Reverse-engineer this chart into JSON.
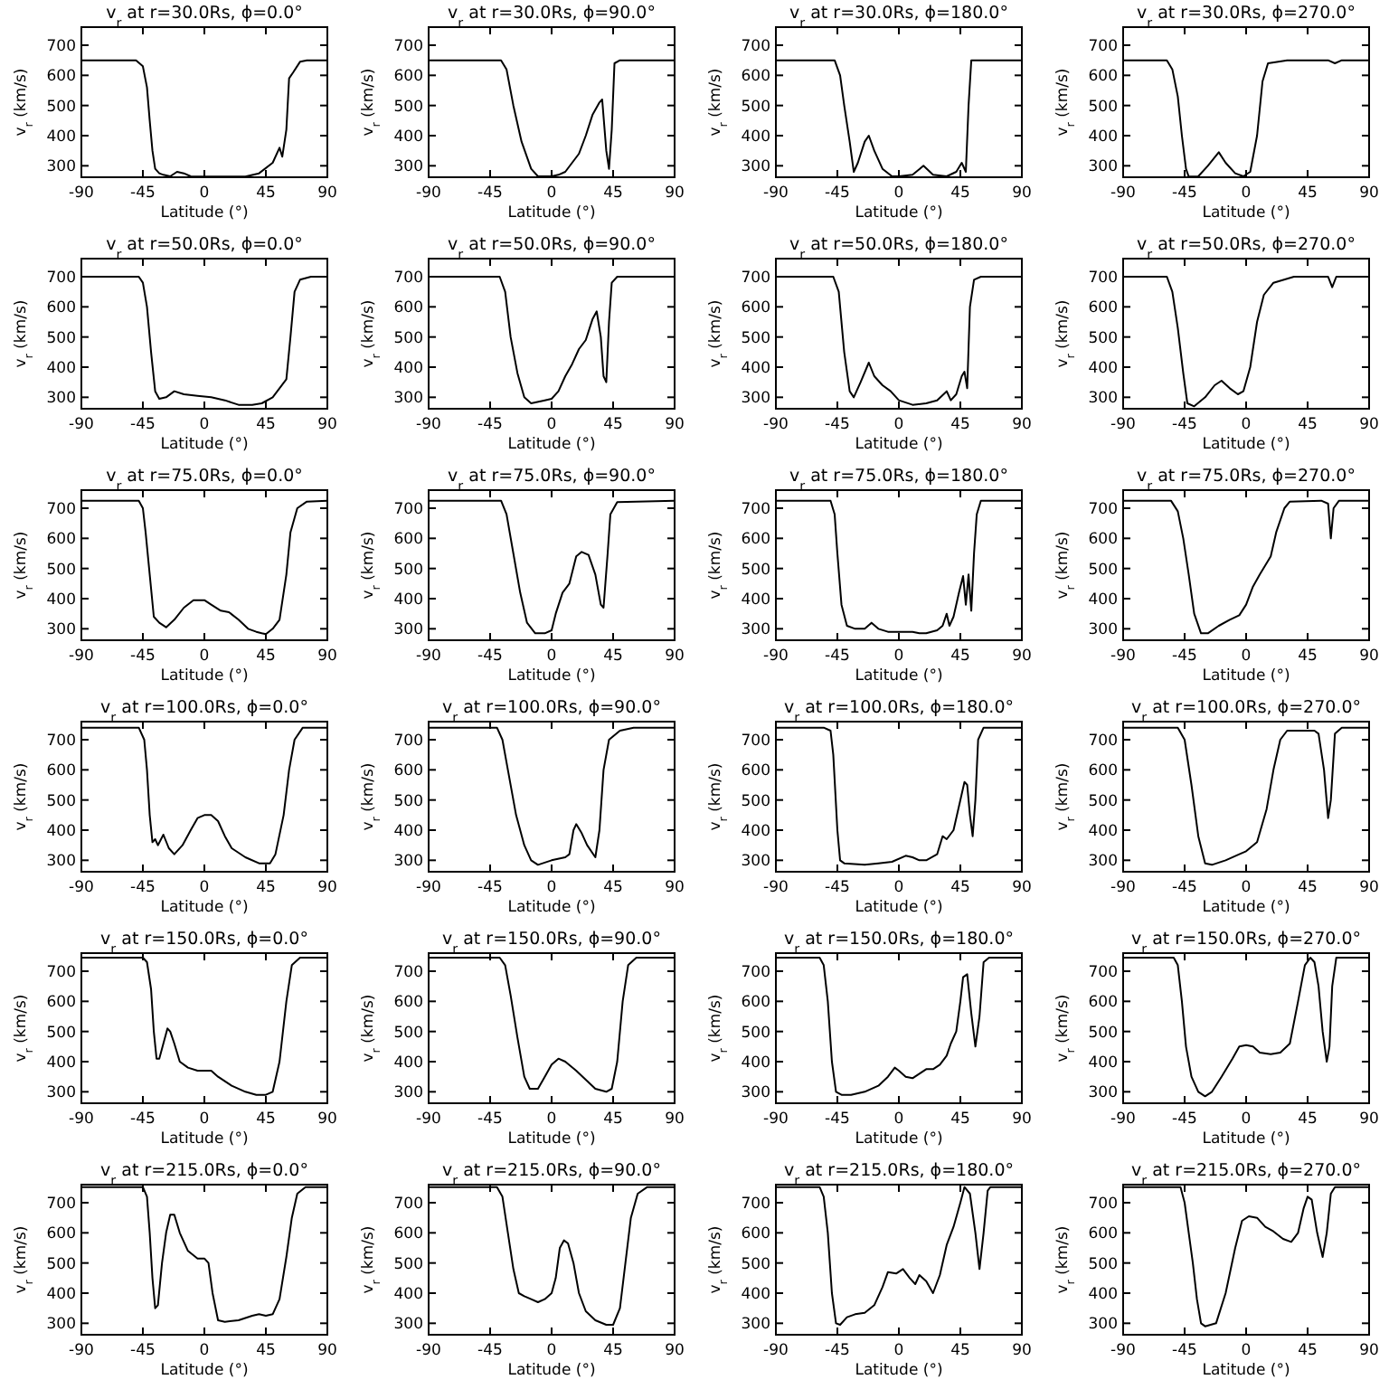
{
  "chart_data": [
    {
      "type": "line",
      "title": "v$_{r}$ at r=30.0Rs,  ϕ=0.0°",
      "xlabel": "Latitude (°)",
      "ylabel": "v$_{r}$ (km/s)",
      "xlim": [
        -90,
        90
      ],
      "ylim": [
        262,
        760
      ],
      "xticks": [
        -90,
        -45,
        0,
        45,
        90
      ],
      "yticks": [
        300,
        400,
        500,
        600,
        700
      ],
      "color": "#000000",
      "x": [
        -90,
        -50,
        -45,
        -42,
        -40,
        -38,
        -36,
        -33,
        -30,
        -25,
        -20,
        -15,
        -10,
        0,
        20,
        30,
        40,
        50,
        55,
        57,
        60,
        62,
        65,
        70,
        75,
        90
      ],
      "values": [
        650,
        650,
        630,
        560,
        450,
        350,
        290,
        275,
        270,
        265,
        280,
        275,
        265,
        264,
        264,
        264,
        275,
        310,
        360,
        330,
        420,
        590,
        610,
        645,
        650,
        650
      ]
    },
    {
      "type": "line",
      "title": "v$_{r}$ at r=30.0Rs,  ϕ=90.0°",
      "xlabel": "Latitude (°)",
      "ylabel": "v$_{r}$ (km/s)",
      "xlim": [
        -90,
        90
      ],
      "ylim": [
        262,
        760
      ],
      "xticks": [
        -90,
        -45,
        0,
        45,
        90
      ],
      "yticks": [
        300,
        400,
        500,
        600,
        700
      ],
      "color": "#000000",
      "x": [
        -90,
        -37,
        -33,
        -28,
        -22,
        -15,
        -10,
        0,
        5,
        10,
        15,
        20,
        25,
        30,
        35,
        37,
        40,
        42,
        44,
        46,
        50,
        90
      ],
      "values": [
        650,
        650,
        620,
        500,
        380,
        290,
        265,
        265,
        270,
        280,
        310,
        340,
        400,
        470,
        510,
        520,
        350,
        290,
        420,
        640,
        650,
        650
      ]
    },
    {
      "type": "line",
      "title": "v$_{r}$ at r=30.0Rs,  ϕ=180.0°",
      "xlabel": "Latitude (°)",
      "ylabel": "v$_{r}$ (km/s)",
      "xlim": [
        -90,
        90
      ],
      "ylim": [
        262,
        760
      ],
      "xticks": [
        -90,
        -45,
        0,
        45,
        90
      ],
      "yticks": [
        300,
        400,
        500,
        600,
        700
      ],
      "color": "#000000",
      "x": [
        -90,
        -47,
        -43,
        -40,
        -36,
        -33,
        -30,
        -25,
        -22,
        -18,
        -12,
        -5,
        0,
        10,
        18,
        25,
        35,
        42,
        46,
        49,
        51,
        53,
        90
      ],
      "values": [
        650,
        650,
        600,
        500,
        380,
        280,
        310,
        380,
        400,
        350,
        290,
        265,
        265,
        270,
        300,
        270,
        265,
        280,
        310,
        280,
        500,
        650,
        650
      ]
    },
    {
      "type": "line",
      "title": "v$_{r}$ at r=30.0Rs,  ϕ=270.0°",
      "xlabel": "Latitude (°)",
      "ylabel": "v$_{r}$ (km/s)",
      "xlim": [
        -90,
        90
      ],
      "ylim": [
        262,
        760
      ],
      "xticks": [
        -90,
        -45,
        0,
        45,
        90
      ],
      "yticks": [
        300,
        400,
        500,
        600,
        700
      ],
      "color": "#000000",
      "x": [
        -90,
        -58,
        -54,
        -50,
        -47,
        -44,
        -42,
        -35,
        -28,
        -20,
        -15,
        -8,
        -2,
        3,
        8,
        12,
        16,
        30,
        60,
        65,
        70,
        90
      ],
      "values": [
        650,
        650,
        620,
        530,
        400,
        290,
        264,
        265,
        300,
        345,
        310,
        275,
        265,
        280,
        400,
        580,
        640,
        650,
        650,
        640,
        650,
        650
      ]
    },
    {
      "type": "line",
      "title": "v$_{r}$ at r=50.0Rs,  ϕ=0.0°",
      "xlabel": "Latitude (°)",
      "ylabel": "v$_{r}$ (km/s)",
      "xlim": [
        -90,
        90
      ],
      "ylim": [
        262,
        760
      ],
      "xticks": [
        -90,
        -45,
        0,
        45,
        90
      ],
      "yticks": [
        300,
        400,
        500,
        600,
        700
      ],
      "color": "#000000",
      "x": [
        -90,
        -48,
        -45,
        -42,
        -39,
        -36,
        -33,
        -28,
        -22,
        -15,
        -5,
        5,
        15,
        25,
        35,
        42,
        50,
        55,
        60,
        63,
        66,
        70,
        78,
        90
      ],
      "values": [
        700,
        700,
        680,
        600,
        450,
        320,
        295,
        300,
        320,
        310,
        305,
        300,
        290,
        275,
        275,
        280,
        300,
        330,
        360,
        500,
        650,
        690,
        700,
        700
      ]
    },
    {
      "type": "line",
      "title": "v$_{r}$ at r=50.0Rs,  ϕ=90.0°",
      "xlabel": "Latitude (°)",
      "ylabel": "v$_{r}$ (km/s)",
      "xlim": [
        -90,
        90
      ],
      "ylim": [
        262,
        760
      ],
      "xticks": [
        -90,
        -45,
        0,
        45,
        90
      ],
      "yticks": [
        300,
        400,
        500,
        600,
        700
      ],
      "color": "#000000",
      "x": [
        -90,
        -38,
        -34,
        -30,
        -25,
        -20,
        -15,
        -5,
        0,
        5,
        10,
        15,
        20,
        25,
        30,
        33,
        36,
        38,
        40,
        42,
        44,
        48,
        90
      ],
      "values": [
        700,
        700,
        650,
        500,
        380,
        300,
        280,
        290,
        295,
        320,
        370,
        410,
        460,
        490,
        560,
        585,
        500,
        370,
        350,
        550,
        680,
        700,
        700
      ]
    },
    {
      "type": "line",
      "title": "v$_{r}$ at r=50.0Rs,  ϕ=180.0°",
      "xlabel": "Latitude (°)",
      "ylabel": "v$_{r}$ (km/s)",
      "xlim": [
        -90,
        90
      ],
      "ylim": [
        262,
        760
      ],
      "xticks": [
        -90,
        -45,
        0,
        45,
        90
      ],
      "yticks": [
        300,
        400,
        500,
        600,
        700
      ],
      "color": "#000000",
      "x": [
        -90,
        -48,
        -44,
        -40,
        -36,
        -33,
        -28,
        -22,
        -18,
        -12,
        -6,
        0,
        10,
        20,
        28,
        35,
        38,
        42,
        46,
        48,
        50,
        52,
        55,
        60,
        90
      ],
      "values": [
        700,
        700,
        650,
        450,
        320,
        300,
        350,
        415,
        370,
        340,
        320,
        290,
        275,
        280,
        290,
        320,
        290,
        310,
        370,
        385,
        330,
        600,
        690,
        700,
        700
      ]
    },
    {
      "type": "line",
      "title": "v$_{r}$ at r=50.0Rs,  ϕ=270.0°",
      "xlabel": "Latitude (°)",
      "ylabel": "v$_{r}$ (km/s)",
      "xlim": [
        -90,
        90
      ],
      "ylim": [
        262,
        760
      ],
      "xticks": [
        -90,
        -45,
        0,
        45,
        90
      ],
      "yticks": [
        300,
        400,
        500,
        600,
        700
      ],
      "color": "#000000",
      "x": [
        -90,
        -58,
        -54,
        -50,
        -46,
        -43,
        -38,
        -30,
        -23,
        -18,
        -12,
        -6,
        -2,
        3,
        8,
        13,
        20,
        35,
        60,
        63,
        66,
        90
      ],
      "values": [
        700,
        700,
        650,
        530,
        380,
        280,
        270,
        300,
        340,
        355,
        330,
        310,
        320,
        400,
        550,
        640,
        680,
        700,
        700,
        665,
        700,
        700
      ]
    },
    {
      "type": "line",
      "title": "v$_{r}$ at r=75.0Rs,  ϕ=0.0°",
      "xlabel": "Latitude (°)",
      "ylabel": "v$_{r}$ (km/s)",
      "xlim": [
        -90,
        90
      ],
      "ylim": [
        262,
        760
      ],
      "xticks": [
        -90,
        -45,
        0,
        45,
        90
      ],
      "yticks": [
        300,
        400,
        500,
        600,
        700
      ],
      "color": "#000000",
      "x": [
        -90,
        -48,
        -45,
        -43,
        -40,
        -37,
        -33,
        -28,
        -22,
        -15,
        -8,
        0,
        5,
        12,
        18,
        25,
        32,
        38,
        42,
        45,
        50,
        55,
        60,
        63,
        68,
        75,
        90
      ],
      "values": [
        725,
        725,
        700,
        620,
        480,
        340,
        320,
        305,
        330,
        370,
        395,
        395,
        380,
        360,
        355,
        330,
        300,
        290,
        285,
        282,
        300,
        330,
        480,
        620,
        700,
        722,
        725
      ]
    },
    {
      "type": "line",
      "title": "v$_{r}$ at r=75.0Rs,  ϕ=90.0°",
      "xlabel": "Latitude (°)",
      "ylabel": "v$_{r}$ (km/s)",
      "xlim": [
        -90,
        90
      ],
      "ylim": [
        262,
        760
      ],
      "xticks": [
        -90,
        -45,
        0,
        45,
        90
      ],
      "yticks": [
        300,
        400,
        500,
        600,
        700
      ],
      "color": "#000000",
      "x": [
        -90,
        -37,
        -33,
        -28,
        -23,
        -18,
        -12,
        -5,
        0,
        3,
        8,
        13,
        18,
        22,
        27,
        32,
        36,
        38,
        41,
        43,
        48,
        90
      ],
      "values": [
        725,
        725,
        680,
        550,
        420,
        320,
        285,
        285,
        295,
        350,
        420,
        450,
        540,
        555,
        545,
        480,
        380,
        370,
        550,
        680,
        720,
        725
      ]
    },
    {
      "type": "line",
      "title": "v$_{r}$ at r=75.0Rs,  ϕ=180.0°",
      "xlabel": "Latitude (°)",
      "ylabel": "v$_{r}$ (km/s)",
      "xlim": [
        -90,
        90
      ],
      "ylim": [
        262,
        760
      ],
      "xticks": [
        -90,
        -45,
        0,
        45,
        90
      ],
      "yticks": [
        300,
        400,
        500,
        600,
        700
      ],
      "color": "#000000",
      "x": [
        -90,
        -50,
        -47,
        -45,
        -42,
        -38,
        -32,
        -25,
        -20,
        -15,
        -8,
        0,
        10,
        15,
        20,
        28,
        32,
        35,
        37,
        40,
        44,
        47,
        49,
        51,
        53,
        55,
        57,
        60,
        90
      ],
      "values": [
        725,
        725,
        680,
        550,
        380,
        310,
        300,
        300,
        320,
        300,
        290,
        290,
        290,
        285,
        285,
        295,
        310,
        350,
        310,
        340,
        420,
        475,
        380,
        480,
        360,
        550,
        680,
        725,
        725
      ]
    },
    {
      "type": "line",
      "title": "v$_{r}$ at r=75.0Rs,  ϕ=270.0°",
      "xlabel": "Latitude (°)",
      "ylabel": "v$_{r}$ (km/s)",
      "xlim": [
        -90,
        90
      ],
      "ylim": [
        262,
        760
      ],
      "xticks": [
        -90,
        -45,
        0,
        45,
        90
      ],
      "yticks": [
        300,
        400,
        500,
        600,
        700
      ],
      "color": "#000000",
      "x": [
        -90,
        -55,
        -50,
        -46,
        -42,
        -38,
        -33,
        -28,
        -20,
        -12,
        -5,
        0,
        5,
        10,
        18,
        22,
        28,
        32,
        55,
        60,
        62,
        64,
        68,
        90
      ],
      "values": [
        725,
        725,
        690,
        600,
        480,
        350,
        285,
        285,
        310,
        330,
        345,
        380,
        440,
        480,
        540,
        620,
        700,
        722,
        725,
        715,
        600,
        700,
        725,
        725
      ]
    },
    {
      "type": "line",
      "title": "v$_{r}$ at r=100.0Rs,  ϕ=0.0°",
      "xlabel": "Latitude (°)",
      "ylabel": "v$_{r}$ (km/s)",
      "xlim": [
        -90,
        90
      ],
      "ylim": [
        262,
        760
      ],
      "xticks": [
        -90,
        -45,
        0,
        45,
        90
      ],
      "yticks": [
        300,
        400,
        500,
        600,
        700
      ],
      "color": "#000000",
      "x": [
        -90,
        -48,
        -44,
        -42,
        -40,
        -38,
        -36,
        -34,
        -30,
        -26,
        -22,
        -16,
        -10,
        -5,
        0,
        5,
        10,
        15,
        20,
        30,
        40,
        48,
        52,
        58,
        62,
        66,
        72,
        90
      ],
      "values": [
        740,
        740,
        700,
        600,
        450,
        360,
        370,
        350,
        385,
        340,
        320,
        350,
        400,
        440,
        450,
        450,
        430,
        380,
        340,
        310,
        290,
        290,
        320,
        450,
        600,
        700,
        740,
        740
      ]
    },
    {
      "type": "line",
      "title": "v$_{r}$ at r=100.0Rs,  ϕ=90.0°",
      "xlabel": "Latitude (°)",
      "ylabel": "v$_{r}$ (km/s)",
      "xlim": [
        -90,
        90
      ],
      "ylim": [
        262,
        760
      ],
      "xticks": [
        -90,
        -45,
        0,
        45,
        90
      ],
      "yticks": [
        300,
        400,
        500,
        600,
        700
      ],
      "color": "#000000",
      "x": [
        -90,
        -40,
        -36,
        -32,
        -26,
        -20,
        -15,
        -10,
        0,
        10,
        13,
        16,
        18,
        22,
        26,
        32,
        35,
        38,
        42,
        50,
        60,
        90
      ],
      "values": [
        740,
        740,
        700,
        600,
        450,
        350,
        300,
        285,
        300,
        310,
        320,
        400,
        420,
        390,
        350,
        310,
        400,
        600,
        700,
        730,
        740,
        740
      ]
    },
    {
      "type": "line",
      "title": "v$_{r}$ at r=100.0Rs,  ϕ=180.0°",
      "xlabel": "Latitude (°)",
      "ylabel": "v$_{r}$ (km/s)",
      "xlim": [
        -90,
        90
      ],
      "ylim": [
        262,
        760
      ],
      "xticks": [
        -90,
        -45,
        0,
        45,
        90
      ],
      "yticks": [
        300,
        400,
        500,
        600,
        700
      ],
      "color": "#000000",
      "x": [
        -90,
        -55,
        -50,
        -48,
        -45,
        -43,
        -40,
        -25,
        -15,
        -5,
        5,
        10,
        15,
        20,
        28,
        32,
        35,
        40,
        45,
        48,
        50,
        52,
        54,
        56,
        58,
        62,
        90
      ],
      "values": [
        740,
        740,
        730,
        650,
        400,
        300,
        290,
        285,
        290,
        295,
        315,
        310,
        300,
        300,
        320,
        380,
        370,
        400,
        500,
        560,
        550,
        450,
        380,
        500,
        700,
        740,
        740
      ]
    },
    {
      "type": "line",
      "title": "v$_{r}$ at r=100.0Rs,  ϕ=270.0°",
      "xlabel": "Latitude (°)",
      "ylabel": "v$_{r}$ (km/s)",
      "xlim": [
        -90,
        90
      ],
      "ylim": [
        262,
        760
      ],
      "xticks": [
        -90,
        -45,
        0,
        45,
        90
      ],
      "yticks": [
        300,
        400,
        500,
        600,
        700
      ],
      "color": "#000000",
      "x": [
        -90,
        -50,
        -45,
        -40,
        -35,
        -30,
        -25,
        -15,
        -5,
        0,
        8,
        15,
        20,
        25,
        30,
        50,
        53,
        57,
        60,
        62,
        65,
        70,
        90
      ],
      "values": [
        740,
        740,
        700,
        550,
        380,
        290,
        285,
        300,
        320,
        330,
        360,
        470,
        600,
        700,
        730,
        730,
        720,
        600,
        440,
        500,
        720,
        740,
        740
      ]
    },
    {
      "type": "line",
      "title": "v$_{r}$ at r=150.0Rs,  ϕ=0.0°",
      "xlabel": "Latitude (°)",
      "ylabel": "v$_{r}$ (km/s)",
      "xlim": [
        -90,
        90
      ],
      "ylim": [
        262,
        760
      ],
      "xticks": [
        -90,
        -45,
        0,
        45,
        90
      ],
      "yticks": [
        300,
        400,
        500,
        600,
        700
      ],
      "color": "#000000",
      "x": [
        -90,
        -45,
        -42,
        -39,
        -37,
        -35,
        -33,
        -30,
        -27,
        -25,
        -22,
        -18,
        -12,
        -5,
        5,
        10,
        20,
        30,
        38,
        45,
        50,
        55,
        60,
        64,
        70,
        90
      ],
      "values": [
        745,
        745,
        730,
        640,
        500,
        410,
        410,
        460,
        510,
        500,
        460,
        400,
        380,
        370,
        370,
        350,
        320,
        300,
        290,
        290,
        300,
        400,
        600,
        720,
        745,
        745
      ]
    },
    {
      "type": "line",
      "title": "v$_{r}$ at r=150.0Rs,  ϕ=90.0°",
      "xlabel": "Latitude (°)",
      "ylabel": "v$_{r}$ (km/s)",
      "xlim": [
        -90,
        90
      ],
      "ylim": [
        262,
        760
      ],
      "xticks": [
        -90,
        -45,
        0,
        45,
        90
      ],
      "yticks": [
        300,
        400,
        500,
        600,
        700
      ],
      "color": "#000000",
      "x": [
        -90,
        -38,
        -34,
        -30,
        -25,
        -20,
        -16,
        -10,
        -5,
        0,
        5,
        10,
        18,
        25,
        32,
        40,
        44,
        48,
        52,
        56,
        62,
        90
      ],
      "values": [
        745,
        745,
        720,
        620,
        480,
        350,
        310,
        310,
        350,
        390,
        410,
        400,
        370,
        340,
        310,
        300,
        310,
        400,
        600,
        720,
        745,
        745
      ]
    },
    {
      "type": "line",
      "title": "v$_{r}$ at r=150.0Rs,  ϕ=180.0°",
      "xlabel": "Latitude (°)",
      "ylabel": "v$_{r}$ (km/s)",
      "xlim": [
        -90,
        90
      ],
      "ylim": [
        262,
        760
      ],
      "xticks": [
        -90,
        -45,
        0,
        45,
        90
      ],
      "yticks": [
        300,
        400,
        500,
        600,
        700
      ],
      "color": "#000000",
      "x": [
        -90,
        -58,
        -55,
        -52,
        -49,
        -46,
        -42,
        -35,
        -25,
        -15,
        -8,
        -3,
        0,
        5,
        10,
        15,
        20,
        25,
        30,
        35,
        38,
        42,
        45,
        47,
        50,
        53,
        56,
        59,
        62,
        66,
        90
      ],
      "values": [
        745,
        745,
        720,
        600,
        400,
        300,
        290,
        290,
        300,
        320,
        350,
        380,
        370,
        350,
        345,
        360,
        375,
        375,
        390,
        420,
        460,
        500,
        600,
        680,
        690,
        560,
        450,
        550,
        730,
        745,
        745
      ]
    },
    {
      "type": "line",
      "title": "v$_{r}$ at r=150.0Rs,  ϕ=270.0°",
      "xlabel": "Latitude (°)",
      "ylabel": "v$_{r}$ (km/s)",
      "xlim": [
        -90,
        90
      ],
      "ylim": [
        262,
        760
      ],
      "xticks": [
        -90,
        -45,
        0,
        45,
        90
      ],
      "yticks": [
        300,
        400,
        500,
        600,
        700
      ],
      "color": "#000000",
      "x": [
        -90,
        -53,
        -50,
        -47,
        -44,
        -40,
        -35,
        -30,
        -25,
        -18,
        -10,
        -5,
        0,
        5,
        10,
        18,
        25,
        32,
        38,
        43,
        47,
        50,
        53,
        56,
        59,
        61,
        63,
        66,
        90
      ],
      "values": [
        745,
        745,
        720,
        600,
        450,
        350,
        300,
        285,
        300,
        350,
        410,
        450,
        455,
        450,
        430,
        425,
        430,
        460,
        600,
        720,
        745,
        730,
        650,
        500,
        400,
        450,
        650,
        745,
        745
      ]
    },
    {
      "type": "line",
      "title": "v$_{r}$ at r=215.0Rs,  ϕ=0.0°",
      "xlabel": "Latitude (°)",
      "ylabel": "v$_{r}$ (km/s)",
      "xlim": [
        -90,
        90
      ],
      "ylim": [
        262,
        760
      ],
      "xticks": [
        -90,
        -45,
        0,
        45,
        90
      ],
      "yticks": [
        300,
        400,
        500,
        600,
        700
      ],
      "color": "#000000",
      "x": [
        -90,
        -45,
        -42,
        -40,
        -38,
        -36,
        -34,
        -31,
        -28,
        -25,
        -22,
        -18,
        -12,
        -5,
        0,
        3,
        6,
        10,
        15,
        25,
        35,
        40,
        45,
        50,
        55,
        60,
        64,
        68,
        74,
        90
      ],
      "values": [
        752,
        752,
        720,
        600,
        450,
        350,
        360,
        500,
        600,
        660,
        660,
        600,
        540,
        515,
        515,
        500,
        400,
        310,
        305,
        310,
        325,
        330,
        325,
        330,
        380,
        520,
        650,
        730,
        752,
        752
      ]
    },
    {
      "type": "line",
      "title": "v$_{r}$ at r=215.0Rs,  ϕ=90.0°",
      "xlabel": "Latitude (°)",
      "ylabel": "v$_{r}$ (km/s)",
      "xlim": [
        -90,
        90
      ],
      "ylim": [
        262,
        760
      ],
      "xticks": [
        -90,
        -45,
        0,
        45,
        90
      ],
      "yticks": [
        300,
        400,
        500,
        600,
        700
      ],
      "color": "#000000",
      "x": [
        -90,
        -40,
        -36,
        -32,
        -28,
        -24,
        -20,
        -15,
        -10,
        -5,
        0,
        3,
        6,
        9,
        12,
        16,
        20,
        25,
        32,
        40,
        45,
        50,
        54,
        58,
        63,
        70,
        90
      ],
      "values": [
        752,
        752,
        720,
        600,
        480,
        400,
        390,
        380,
        370,
        380,
        400,
        450,
        550,
        575,
        565,
        500,
        400,
        340,
        310,
        295,
        295,
        350,
        500,
        650,
        730,
        752,
        752
      ]
    },
    {
      "type": "line",
      "title": "v$_{r}$ at r=215.0Rs,  ϕ=180.0°",
      "xlabel": "Latitude (°)",
      "ylabel": "v$_{r}$ (km/s)",
      "xlim": [
        -90,
        90
      ],
      "ylim": [
        262,
        760
      ],
      "xticks": [
        -90,
        -45,
        0,
        45,
        90
      ],
      "yticks": [
        300,
        400,
        500,
        600,
        700
      ],
      "color": "#000000",
      "x": [
        -90,
        -58,
        -55,
        -52,
        -49,
        -46,
        -43,
        -38,
        -32,
        -25,
        -18,
        -12,
        -8,
        -2,
        3,
        8,
        12,
        15,
        20,
        25,
        30,
        35,
        40,
        45,
        48,
        52,
        56,
        59,
        62,
        65,
        67,
        90
      ],
      "values": [
        752,
        752,
        720,
        600,
        400,
        300,
        295,
        320,
        330,
        335,
        360,
        420,
        470,
        465,
        480,
        450,
        430,
        460,
        440,
        400,
        460,
        560,
        620,
        700,
        752,
        730,
        600,
        480,
        600,
        740,
        752,
        752
      ]
    },
    {
      "type": "line",
      "title": "v$_{r}$ at r=215.0Rs,  ϕ=270.0°",
      "xlabel": "Latitude (°)",
      "ylabel": "v$_{r}$ (km/s)",
      "xlim": [
        -90,
        90
      ],
      "ylim": [
        262,
        760
      ],
      "xticks": [
        -90,
        -45,
        0,
        45,
        90
      ],
      "yticks": [
        300,
        400,
        500,
        600,
        700
      ],
      "color": "#000000",
      "x": [
        -90,
        -48,
        -45,
        -42,
        -39,
        -36,
        -33,
        -30,
        -22,
        -15,
        -8,
        -3,
        2,
        8,
        14,
        20,
        27,
        33,
        38,
        42,
        45,
        48,
        52,
        56,
        59,
        62,
        65,
        90
      ],
      "values": [
        752,
        752,
        700,
        600,
        500,
        380,
        300,
        290,
        300,
        400,
        550,
        640,
        655,
        650,
        620,
        605,
        580,
        570,
        600,
        680,
        720,
        710,
        600,
        520,
        600,
        730,
        752,
        752
      ]
    }
  ]
}
